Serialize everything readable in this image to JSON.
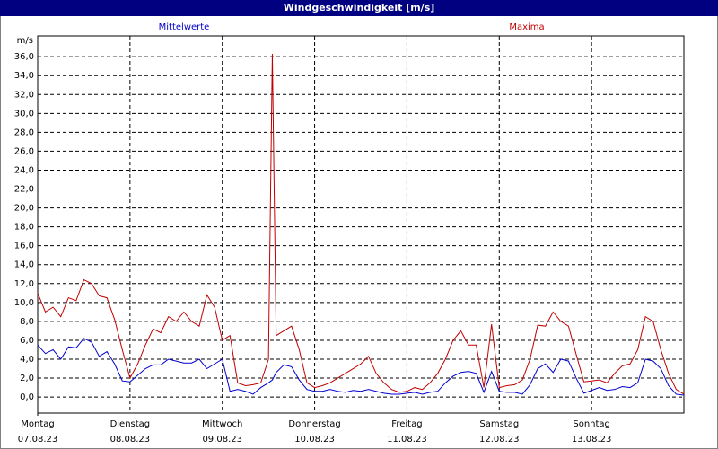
{
  "chart_data": {
    "type": "line",
    "title": "Windgeschwindigkeit [m/s]",
    "y_unit": "m/s",
    "x": [
      0,
      2,
      4,
      6,
      8,
      10,
      12,
      14,
      16,
      18,
      20,
      22,
      24,
      26,
      28,
      30,
      32,
      34,
      36,
      38,
      40,
      42,
      44,
      46,
      48,
      50,
      52,
      54,
      56,
      58,
      60,
      61,
      62,
      64,
      66,
      68,
      70,
      72,
      74,
      76,
      78,
      80,
      82,
      84,
      86,
      88,
      90,
      92,
      94,
      96,
      98,
      100,
      102,
      104,
      106,
      108,
      110,
      112,
      114,
      116,
      118,
      120,
      122,
      124,
      126,
      128,
      130,
      132,
      134,
      136,
      138,
      140,
      142,
      144,
      146,
      148,
      150,
      152,
      154,
      156,
      158,
      160,
      162,
      164,
      166,
      168
    ],
    "series": [
      {
        "name": "Mittelwerte",
        "color": "#0000cc",
        "values": [
          5.5,
          4.6,
          5.0,
          4.0,
          5.3,
          5.2,
          6.2,
          5.8,
          4.3,
          4.8,
          3.5,
          1.7,
          1.6,
          2.3,
          3.0,
          3.4,
          3.4,
          4.0,
          3.8,
          3.6,
          3.6,
          4.0,
          3.0,
          3.5,
          4.0,
          0.6,
          0.8,
          0.6,
          0.3,
          1.0,
          1.5,
          1.8,
          2.6,
          3.4,
          3.2,
          1.8,
          0.8,
          0.6,
          0.6,
          0.8,
          0.6,
          0.5,
          0.7,
          0.6,
          0.8,
          0.6,
          0.4,
          0.3,
          0.3,
          0.4,
          0.5,
          0.3,
          0.5,
          0.6,
          1.5,
          2.2,
          2.6,
          2.7,
          2.5,
          0.5,
          2.7,
          0.6,
          0.5,
          0.5,
          0.3,
          1.3,
          3.0,
          3.5,
          2.6,
          4.0,
          3.8,
          2.0,
          0.4,
          0.7,
          1.0,
          0.7,
          0.8,
          1.1,
          1.0,
          1.5,
          4.0,
          3.8,
          3.0,
          1.2,
          0.3,
          0.2
        ]
      },
      {
        "name": "Maxima",
        "color": "#c00000",
        "values": [
          11,
          9,
          9.5,
          8.5,
          10.5,
          10.2,
          12.4,
          12.0,
          10.7,
          10.5,
          8.2,
          5,
          2,
          3.5,
          5.5,
          7.2,
          6.8,
          8.5,
          8.0,
          9.0,
          8.0,
          7.5,
          10.8,
          9.5,
          6.0,
          6.5,
          1.5,
          1.2,
          1.3,
          1.5,
          4.0,
          36.3,
          6.5,
          7.0,
          7.5,
          5.0,
          1.5,
          1.0,
          1.2,
          1.5,
          2.0,
          2.5,
          3.0,
          3.5,
          4.3,
          2.5,
          1.5,
          0.8,
          0.5,
          0.6,
          1.0,
          0.8,
          1.5,
          2.5,
          4.0,
          6.0,
          7.0,
          5.5,
          5.5,
          1.0,
          7.7,
          1.0,
          1.2,
          1.3,
          1.8,
          4.0,
          7.6,
          7.5,
          9.0,
          8.0,
          7.5,
          4.5,
          1.6,
          1.7,
          1.8,
          1.5,
          2.5,
          3.3,
          3.5,
          5.0,
          8.5,
          8.0,
          5.0,
          2.5,
          0.8,
          0.3
        ]
      }
    ],
    "xlim": [
      0,
      168
    ],
    "xticks": [
      0,
      24,
      48,
      72,
      96,
      120,
      144
    ],
    "day_labels": [
      "Montag",
      "Dienstag",
      "Mittwoch",
      "Donnerstag",
      "Freitag",
      "Samstag",
      "Sonntag"
    ],
    "day_dates": [
      "07.08.23",
      "08.08.23",
      "09.08.23",
      "10.08.23",
      "11.08.23",
      "12.08.23",
      "13.08.23"
    ],
    "ylim": [
      -1.7,
      38.2
    ],
    "yticks": [
      {
        "value": 0,
        "label": "0,0"
      },
      {
        "value": 2,
        "label": "2,0"
      },
      {
        "value": 4,
        "label": "4,0"
      },
      {
        "value": 6,
        "label": "6,0"
      },
      {
        "value": 8,
        "label": "8,0"
      },
      {
        "value": 10,
        "label": "10,0"
      },
      {
        "value": 12,
        "label": "12,0"
      },
      {
        "value": 14,
        "label": "14,0"
      },
      {
        "value": 16,
        "label": "16,0"
      },
      {
        "value": 18,
        "label": "18,0"
      },
      {
        "value": 20,
        "label": "20,0"
      },
      {
        "value": 22,
        "label": "22,0"
      },
      {
        "value": 24,
        "label": "24,0"
      },
      {
        "value": 26,
        "label": "26,0"
      },
      {
        "value": 28,
        "label": "28,0"
      },
      {
        "value": 30,
        "label": "30,0"
      },
      {
        "value": 32,
        "label": "32,0"
      },
      {
        "value": 34,
        "label": "34,0"
      },
      {
        "value": 36,
        "label": "36,0"
      }
    ],
    "grid": true
  }
}
